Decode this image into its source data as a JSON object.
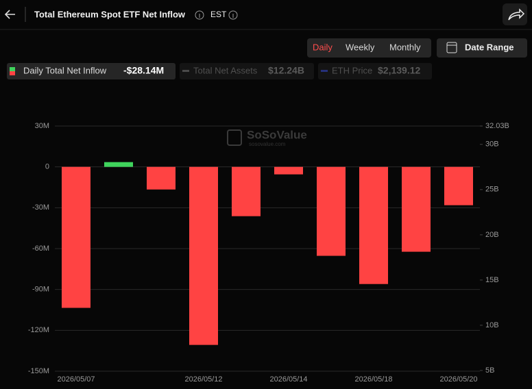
{
  "header": {
    "title": "Total Ethereum Spot ETF Net Inflow",
    "timezone": "EST"
  },
  "controls": {
    "periods": [
      "Daily",
      "Weekly",
      "Monthly"
    ],
    "active_period": 0,
    "date_range": "Date Range"
  },
  "chart_data": {
    "type": "bar",
    "watermark": "SoSoValue",
    "watermark_url": "sosovalue.com",
    "categories": [
      "2026/05/07",
      null,
      null,
      "2026/05/12",
      null,
      "2026/05/14",
      null,
      "2026/05/18",
      null,
      "2026/05/20"
    ],
    "series": [
      {
        "name": "Daily Total Net Inflow",
        "value_label": "-$28.14M",
        "values": [
          -103.5,
          3.5,
          -16.6,
          -130.7,
          -36.2,
          -5.5,
          -65.3,
          -86,
          -62.3,
          -28.14
        ]
      }
    ],
    "hidden_series": [
      {
        "name": "Total Net Assets",
        "value_label": "$12.24B",
        "color": "#4a4a4a",
        "axis": "y2"
      },
      {
        "name": "ETH Price",
        "value_label": "$2,139.12",
        "color": "#25307a",
        "axis": "y2"
      }
    ],
    "positive_color": "#3fd35c",
    "negative_color": "#ff4343",
    "ylim": [
      -150,
      30
    ],
    "yticks": [
      {
        "value": 30,
        "label": "30M"
      },
      0,
      {
        "value": -30,
        "label": "-30M"
      },
      {
        "value": -60,
        "label": "-60M"
      },
      {
        "value": -90,
        "label": "-90M"
      },
      {
        "value": -120,
        "label": "-120M"
      },
      {
        "value": -150,
        "label": "-150M"
      }
    ],
    "y2lim": [
      4.92,
      32.03
    ],
    "y2ticks": [
      {
        "value": 32.03,
        "label": "32.03B"
      },
      {
        "value": 30,
        "label": "30B"
      },
      {
        "value": 25,
        "label": "25B"
      },
      {
        "value": 20,
        "label": "20B"
      },
      {
        "value": 15,
        "label": "15B"
      },
      {
        "value": 10,
        "label": "10B"
      },
      {
        "value": 5,
        "label": "5B"
      }
    ],
    "grid": true
  }
}
